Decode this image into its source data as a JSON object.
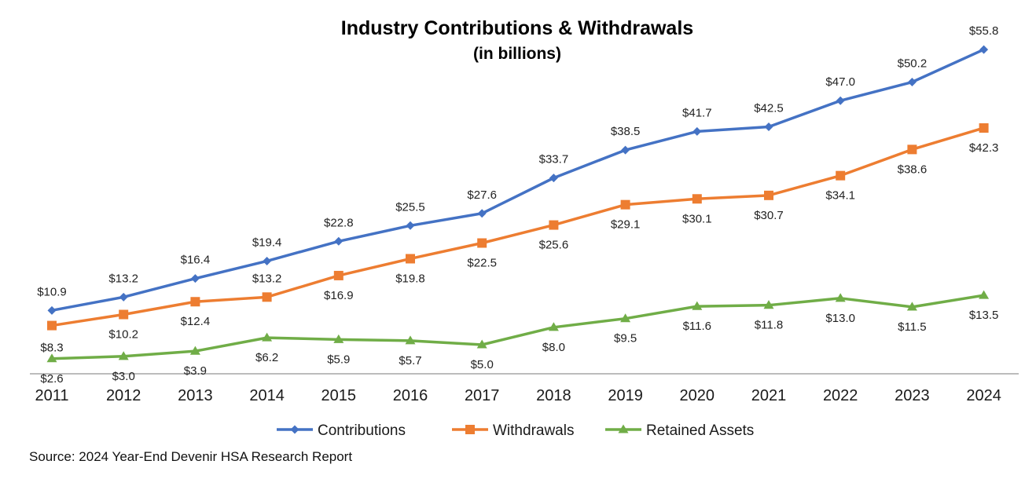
{
  "chart_data": {
    "type": "line",
    "title": "Industry Contributions & Withdrawals",
    "subtitle": "(in billions)",
    "categories": [
      "2011",
      "2012",
      "2013",
      "2014",
      "2015",
      "2016",
      "2017",
      "2018",
      "2019",
      "2020",
      "2021",
      "2022",
      "2023",
      "2024"
    ],
    "ylim": [
      0,
      60
    ],
    "grid": false,
    "legend": "bottom",
    "series": [
      {
        "name": "Contributions",
        "color": "#4472C4",
        "marker": "diamond",
        "values": [
          10.9,
          13.2,
          16.4,
          19.4,
          22.8,
          25.5,
          27.6,
          33.7,
          38.5,
          41.7,
          42.5,
          47.0,
          50.2,
          55.8
        ],
        "labels": [
          "$10.9",
          "$13.2",
          "$16.4",
          "$19.4",
          "$22.8",
          "$25.5",
          "$27.6",
          "$33.7",
          "$38.5",
          "$41.7",
          "$42.5",
          "$47.0",
          "$50.2",
          "$55.8"
        ]
      },
      {
        "name": "Withdrawals",
        "color": "#ED7D31",
        "marker": "square",
        "values": [
          8.3,
          10.2,
          12.4,
          13.2,
          16.9,
          19.8,
          22.5,
          25.6,
          29.1,
          30.1,
          30.7,
          34.1,
          38.6,
          42.3
        ],
        "labels": [
          "$8.3",
          "$10.2",
          "$12.4",
          "$13.2",
          "$16.9",
          "$19.8",
          "$22.5",
          "$25.6",
          "$29.1",
          "$30.1",
          "$30.7",
          "$34.1",
          "$38.6",
          "$42.3"
        ]
      },
      {
        "name": "Retained Assets",
        "color": "#70AD47",
        "marker": "triangle",
        "values": [
          2.6,
          3.0,
          3.9,
          6.2,
          5.9,
          5.7,
          5.0,
          8.0,
          9.5,
          11.6,
          11.8,
          13.0,
          11.5,
          13.5
        ],
        "labels": [
          "$2.6",
          "$3.0",
          "$3.9",
          "$6.2",
          "$5.9",
          "$5.7",
          "$5.0",
          "$8.0",
          "$9.5",
          "$11.6",
          "$11.8",
          "$13.0",
          "$11.5",
          "$13.5"
        ]
      }
    ]
  },
  "source": "Source: 2024 Year-End Devenir HSA Research Report"
}
